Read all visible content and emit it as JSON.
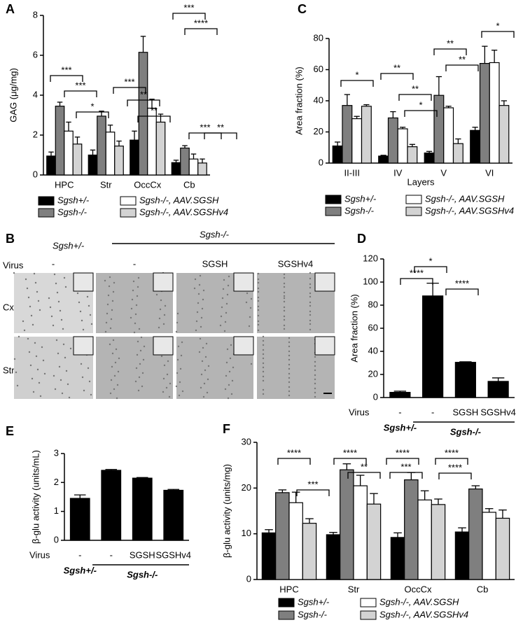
{
  "chart_data": [
    {
      "type": "bar",
      "panel": "A",
      "y_label": "GAG (μg/mg)",
      "categories": [
        "HPC",
        "Str",
        "OccCx",
        "Cb"
      ],
      "series": [
        {
          "name": "Sgsh+/-",
          "color": "#000000",
          "values": [
            0.95,
            1.0,
            1.75,
            0.62
          ],
          "errors": [
            0.2,
            0.25,
            0.45,
            0.12
          ]
        },
        {
          "name": "Sgsh-/-",
          "color": "#7f7f7f",
          "values": [
            3.45,
            2.95,
            6.15,
            1.35
          ],
          "errors": [
            0.2,
            0.25,
            0.8,
            0.12
          ]
        },
        {
          "name": "Sgsh-/-, AAV.SGSH",
          "color": "#ffffff",
          "values": [
            2.2,
            2.15,
            3.35,
            0.8
          ],
          "errors": [
            0.45,
            0.35,
            0.45,
            0.25
          ]
        },
        {
          "name": "Sgsh-/-, AAV.SGSHv4",
          "color": "#d3d3d3",
          "values": [
            1.55,
            1.45,
            2.65,
            0.6
          ],
          "errors": [
            0.35,
            0.25,
            0.4,
            0.2
          ]
        }
      ],
      "ylim": [
        0,
        8
      ],
      "yticks": [
        0,
        2,
        4,
        6,
        8
      ],
      "annotations": [
        "***",
        "***",
        "*",
        "***",
        "**",
        "**",
        "***",
        "****",
        "***",
        "**"
      ]
    },
    {
      "type": "bar",
      "panel": "C",
      "y_label": "Area fraction (%)",
      "x_label": "Layers",
      "categories": [
        "II-III",
        "IV",
        "V",
        "VI"
      ],
      "series": [
        {
          "name": "Sgsh+/-",
          "color": "#000000",
          "values": [
            11,
            4.5,
            6.5,
            21
          ],
          "errors": [
            2.5,
            0.5,
            1,
            2
          ]
        },
        {
          "name": "Sgsh-/-",
          "color": "#7f7f7f",
          "values": [
            37,
            29,
            43.5,
            64
          ],
          "errors": [
            7,
            4,
            12,
            11
          ]
        },
        {
          "name": "Sgsh-/-, AAV.SGSH",
          "color": "#ffffff",
          "values": [
            28.5,
            22,
            35.5,
            64.5
          ],
          "errors": [
            1.5,
            1,
            1,
            8
          ]
        },
        {
          "name": "Sgsh-/-, AAV.SGSHv4",
          "color": "#d3d3d3",
          "values": [
            36.5,
            10.5,
            12.5,
            37
          ],
          "errors": [
            1,
            1.5,
            3,
            3
          ]
        }
      ],
      "ylim": [
        0,
        80
      ],
      "yticks": [
        0,
        20,
        40,
        60,
        80
      ],
      "annotations": [
        "*",
        "**",
        "**",
        "*",
        "**",
        "**",
        "*"
      ]
    },
    {
      "type": "bar",
      "panel": "D",
      "y_label": "Area fraction (%)",
      "row_label": "Virus",
      "categories": [
        "-",
        "-",
        "SGSH",
        "SGSHv4"
      ],
      "group_labels": [
        "Sgsh+/-",
        "Sgsh-/-"
      ],
      "values": [
        4.5,
        88,
        30.5,
        14
      ],
      "errors": [
        1,
        11,
        0.5,
        3
      ],
      "color": "#000000",
      "ylim": [
        0,
        120
      ],
      "yticks": [
        0,
        20,
        40,
        60,
        80,
        100,
        120
      ],
      "annotations": [
        "*",
        "****",
        "****"
      ]
    },
    {
      "type": "bar",
      "panel": "E",
      "y_label": "β-glu activity (units/mL)",
      "row_label": "Virus",
      "categories": [
        "-",
        "-",
        "SGSH",
        "SGSHv4"
      ],
      "group_labels": [
        "Sgsh+/-",
        "Sgsh-/-"
      ],
      "values": [
        1.45,
        2.42,
        2.15,
        1.73
      ],
      "errors": [
        0.12,
        0.03,
        0.02,
        0.03
      ],
      "color": "#000000",
      "ylim": [
        0,
        3
      ],
      "yticks": [
        0,
        1,
        2,
        3
      ],
      "annotations": []
    },
    {
      "type": "bar",
      "panel": "F",
      "y_label": "β-glu activity (units/mg)",
      "categories": [
        "HPC",
        "Str",
        "OccCx",
        "Cb"
      ],
      "series": [
        {
          "name": "Sgsh+/-",
          "color": "#000000",
          "values": [
            10.2,
            9.8,
            9.2,
            10.4
          ],
          "errors": [
            0.7,
            0.5,
            1,
            0.9
          ]
        },
        {
          "name": "Sgsh-/-",
          "color": "#7f7f7f",
          "values": [
            19,
            24,
            21.8,
            19.8
          ],
          "errors": [
            0.6,
            1.3,
            1.6,
            0.7
          ]
        },
        {
          "name": "Sgsh-/-, AAV.SGSH",
          "color": "#ffffff",
          "values": [
            16.8,
            20.5,
            17.4,
            14.7
          ],
          "errors": [
            2.3,
            2.3,
            2,
            0.8
          ]
        },
        {
          "name": "Sgsh-/-, AAV.SGSHv4",
          "color": "#d3d3d3",
          "values": [
            12.3,
            16.5,
            16.4,
            13.4
          ],
          "errors": [
            1,
            2.3,
            1.2,
            1.8
          ]
        }
      ],
      "ylim": [
        0,
        30
      ],
      "yticks": [
        0,
        10,
        20,
        30
      ],
      "annotations": [
        "****",
        "***",
        "****",
        "**",
        "****",
        "***",
        "****",
        "****"
      ]
    }
  ],
  "image_panel": {
    "panel": "B",
    "genotypes": [
      "Sgsh+/-",
      "Sgsh-/-"
    ],
    "row_label": "Virus",
    "virus": [
      "-",
      "-",
      "SGSH",
      "SGSHv4"
    ],
    "regions": [
      "Cx",
      "Str"
    ]
  }
}
